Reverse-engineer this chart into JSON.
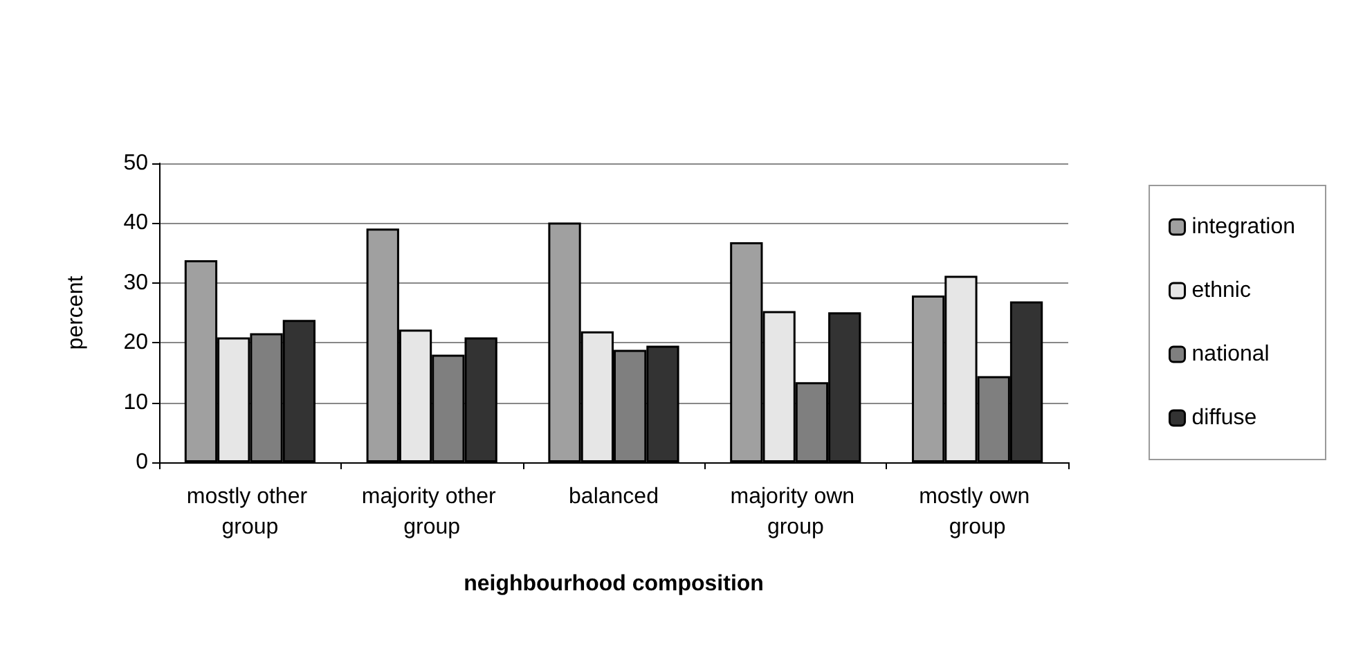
{
  "chart_data": {
    "type": "bar",
    "xlabel": "neighbourhood composition",
    "ylabel": "percent",
    "categories": [
      "mostly other group",
      "majority other group",
      "balanced",
      "majority own group",
      "mostly own group"
    ],
    "series": [
      {
        "name": "integration",
        "color": "#a0a0a0",
        "values": [
          33.8,
          39.1,
          40.1,
          36.8,
          27.9
        ]
      },
      {
        "name": "ethnic",
        "color": "#e6e6e6",
        "values": [
          20.9,
          22.2,
          21.9,
          25.3,
          31.2
        ]
      },
      {
        "name": "national",
        "color": "#7f7f7f",
        "values": [
          21.6,
          18.0,
          18.8,
          13.4,
          14.4
        ]
      },
      {
        "name": "diffuse",
        "color": "#333333",
        "values": [
          23.8,
          20.9,
          19.5,
          25.1,
          26.9
        ]
      }
    ],
    "ylim": [
      0,
      50
    ],
    "yticks": [
      0,
      10,
      20,
      30,
      40,
      50
    ],
    "grid": "y",
    "legend": "right"
  }
}
